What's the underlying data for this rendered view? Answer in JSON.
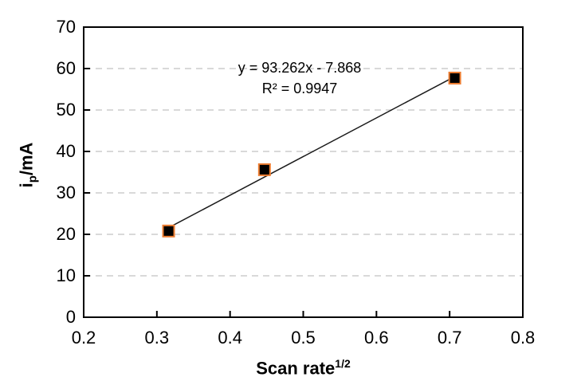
{
  "chart_data": {
    "type": "scatter",
    "title": "",
    "x": [
      0.316,
      0.447,
      0.707
    ],
    "y": [
      20.8,
      35.6,
      57.7
    ],
    "trendline": {
      "slope": 93.262,
      "intercept": -7.868,
      "x_start": 0.316,
      "x_end": 0.707
    },
    "annotation": {
      "line1": "y = 93.262x - 7.868",
      "line2": "R² = 0.9947"
    },
    "x_axis": {
      "title_main": "Scan rate",
      "title_sup": "1/2",
      "min": 0.2,
      "max": 0.8,
      "tick_values": [
        0.2,
        0.3,
        0.4,
        0.5,
        0.6,
        0.7,
        0.8
      ],
      "tick_labels": [
        "0.2",
        "0.3",
        "0.4",
        "0.5",
        "0.6",
        "0.7",
        "0.8"
      ]
    },
    "y_axis": {
      "title_main": "i",
      "title_sub": "p",
      "title_rest": "/mA",
      "min": 0,
      "max": 70,
      "tick_values": [
        0,
        10,
        20,
        30,
        40,
        50,
        60,
        70
      ],
      "tick_labels": [
        "0",
        "10",
        "20",
        "30",
        "40",
        "50",
        "60",
        "70"
      ]
    },
    "gridlines": {
      "y_values": [
        10,
        20,
        30,
        40,
        50,
        60
      ],
      "style": "dashed"
    },
    "legend": "none",
    "colors": {
      "marker_fill": "#000000",
      "marker_border": "#ED7D31",
      "trendline": "#1a1a1a",
      "axis": "#000000",
      "gridline": "#D9D9D9",
      "background": "#FFFFFF",
      "text": "#000000"
    }
  }
}
